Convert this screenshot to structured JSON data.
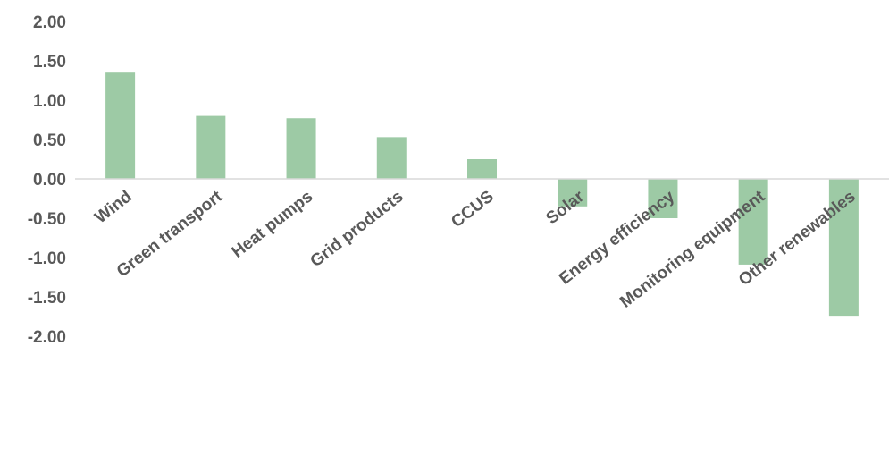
{
  "chart_data": {
    "type": "bar",
    "categories": [
      "Wind",
      "Green transport",
      "Heat pumps",
      "Grid products",
      "CCUS",
      "Solar",
      "Energy efficiency",
      "Monitoring equipment",
      "Other renewables"
    ],
    "values": [
      1.35,
      0.8,
      0.77,
      0.53,
      0.25,
      -0.35,
      -0.5,
      -1.09,
      -1.74
    ],
    "ylim": [
      -2.0,
      2.0
    ],
    "yticks": [
      "2.00",
      "1.50",
      "1.00",
      "0.50",
      "0.00",
      "-0.50",
      "-1.00",
      "-1.50",
      "-2.00"
    ],
    "title": "",
    "xlabel": "",
    "ylabel": "",
    "grid": false,
    "bar_color": "#9dcaa5",
    "axis_color": "#d9d9d9",
    "text_color": "#595959"
  }
}
